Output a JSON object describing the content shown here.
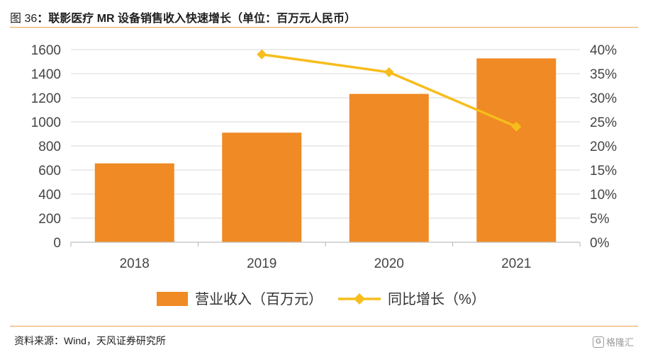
{
  "header": {
    "fig_label": "图 36",
    "title": "：联影医疗 MR 设备销售收入快速增长（单位：百万元人民币）"
  },
  "chart_data": {
    "type": "bar",
    "categories": [
      "2018",
      "2019",
      "2020",
      "2021"
    ],
    "series": [
      {
        "name": "营业收入（百万元）",
        "type": "bar",
        "axis": "left",
        "values": [
          655,
          910,
          1232,
          1527
        ]
      },
      {
        "name": "同比增长（%）",
        "type": "line",
        "axis": "right",
        "values": [
          null,
          39.0,
          35.3,
          24.0
        ]
      }
    ],
    "y_left": {
      "min": 0,
      "max": 1600,
      "ticks": [
        "0",
        "200",
        "400",
        "600",
        "800",
        "1000",
        "1200",
        "1400",
        "1600"
      ]
    },
    "y_right": {
      "min": 0,
      "max": 40,
      "ticks": [
        "0%",
        "5%",
        "10%",
        "15%",
        "20%",
        "25%",
        "30%",
        "35%",
        "40%"
      ]
    },
    "grid": true,
    "legend_position": "bottom",
    "colors": {
      "bar": "#f08a24",
      "line": "#f7bd1d",
      "grid": "#d9d9d9",
      "axis": "#bfbfbf",
      "tick_text": "#444444"
    }
  },
  "footer": {
    "source": "资料来源：Wind，天风证券研究所",
    "watermark": "格隆汇",
    "watermark_icon": "G"
  }
}
